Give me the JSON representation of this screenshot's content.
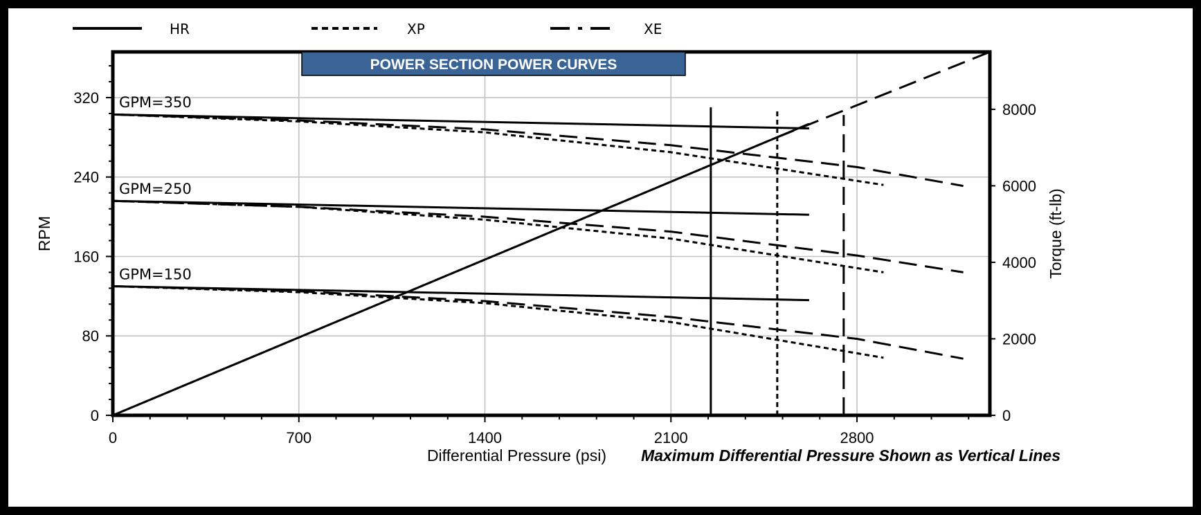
{
  "chart_data": {
    "type": "line",
    "title": "POWER SECTION POWER CURVES",
    "xlabel": "Differential Pressure (psi)",
    "ylabel": "RPM",
    "y2label": "Torque (ft-lb)",
    "note": "Maximum Differential Pressure Shown as Vertical Lines",
    "xlim": [
      0,
      3300
    ],
    "ylim": [
      0,
      366
    ],
    "y2lim": [
      0,
      9500
    ],
    "xticks": [
      0,
      700,
      1400,
      2100,
      2800
    ],
    "yticks": [
      0,
      80,
      160,
      240,
      320
    ],
    "y2ticks": [
      0,
      2000,
      4000,
      6000,
      8000
    ],
    "grid": "vertical and horizontal",
    "legend": {
      "placement": "top",
      "entries": [
        {
          "name": "HR",
          "style": "solid"
        },
        {
          "name": "XP",
          "style": "dotted"
        },
        {
          "name": "XE",
          "style": "long-dash"
        }
      ]
    },
    "flow_labels": [
      {
        "text": "GPM=350",
        "rpm": 308
      },
      {
        "text": "GPM=250",
        "rpm": 221
      },
      {
        "text": "GPM=150",
        "rpm": 135
      }
    ],
    "rpm_series": [
      {
        "name": "HR",
        "gpm": 350,
        "style": "solid",
        "x": [
          0,
          2620
        ],
        "y": [
          303,
          289
        ]
      },
      {
        "name": "XP",
        "gpm": 350,
        "style": "dotted",
        "x": [
          0,
          700,
          1400,
          2100,
          2900
        ],
        "y": [
          303,
          296,
          285,
          265,
          232
        ]
      },
      {
        "name": "XE",
        "gpm": 350,
        "style": "long-dash",
        "x": [
          0,
          700,
          1400,
          2100,
          2800,
          3200
        ],
        "y": [
          303,
          297,
          288,
          272,
          250,
          231
        ]
      },
      {
        "name": "HR",
        "gpm": 250,
        "style": "solid",
        "x": [
          0,
          2620
        ],
        "y": [
          216,
          202
        ]
      },
      {
        "name": "XP",
        "gpm": 250,
        "style": "dotted",
        "x": [
          0,
          700,
          1400,
          2100,
          2900
        ],
        "y": [
          216,
          210,
          197,
          178,
          144
        ]
      },
      {
        "name": "XE",
        "gpm": 250,
        "style": "long-dash",
        "x": [
          0,
          700,
          1400,
          2100,
          2800,
          3200
        ],
        "y": [
          216,
          210,
          200,
          185,
          161,
          144
        ]
      },
      {
        "name": "HR",
        "gpm": 150,
        "style": "solid",
        "x": [
          0,
          2620
        ],
        "y": [
          130,
          116
        ]
      },
      {
        "name": "XP",
        "gpm": 150,
        "style": "dotted",
        "x": [
          0,
          700,
          1400,
          2100,
          2900
        ],
        "y": [
          130,
          124,
          113,
          94,
          58
        ]
      },
      {
        "name": "XE",
        "gpm": 150,
        "style": "long-dash",
        "x": [
          0,
          700,
          1400,
          2100,
          2800,
          3200
        ],
        "y": [
          130,
          125,
          115,
          99,
          77,
          57
        ]
      }
    ],
    "torque_series": [
      {
        "name": "HR",
        "style": "solid",
        "x": [
          0,
          2620
        ],
        "y": [
          0,
          7620
        ]
      },
      {
        "name": "XP",
        "style": "dotted",
        "x": [
          0,
          2500
        ],
        "y": [
          0,
          7270
        ]
      },
      {
        "name": "XE",
        "style": "long-dash",
        "x": [
          2500,
          3300
        ],
        "y": [
          7270,
          9500
        ]
      }
    ],
    "max_pressure_lines": [
      {
        "name": "HR",
        "style": "solid",
        "x": 2250,
        "torque_top": 8050
      },
      {
        "name": "XP",
        "style": "dotted",
        "x": 2500,
        "torque_top": 7950
      },
      {
        "name": "XE",
        "style": "long-dash",
        "x": 2750,
        "torque_top": 7850
      }
    ]
  },
  "colors": {
    "title_bar": "#3a6496",
    "grid": "#bfbfbf",
    "frame": "#000000"
  }
}
